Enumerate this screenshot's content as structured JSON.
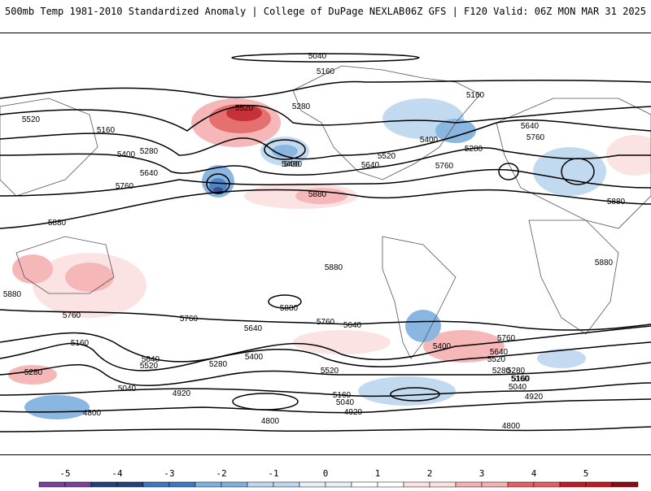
{
  "header": {
    "title_left": "500mb Temp 1981-2010 Standardized Anomaly | College of DuPage NEXLAB",
    "title_right": "06Z GFS | F120 Valid: 06Z MON MAR 31 2025"
  },
  "contours": {
    "labels": [
      "5040",
      "5160",
      "5520",
      "5160",
      "5400",
      "5280",
      "5640",
      "5760",
      "5520",
      "5400",
      "5280",
      "5160",
      "5280",
      "5400",
      "5520",
      "5640",
      "5760",
      "5880",
      "5640",
      "5760",
      "5880",
      "5880",
      "5880",
      "5880",
      "5760",
      "5640",
      "5760",
      "5400",
      "5520",
      "5640",
      "5280",
      "5160",
      "5040",
      "4920",
      "4800",
      "4800",
      "4920",
      "5040",
      "5160",
      "5280",
      "5400",
      "5520",
      "5640",
      "5760",
      "5880",
      "5160",
      "5280",
      "5520",
      "5640",
      "5760",
      "5400",
      "5280",
      "5160",
      "5040",
      "4920",
      "4800",
      "5880"
    ]
  },
  "colorbar": {
    "ticks": [
      "-5",
      "-4",
      "-3",
      "-2",
      "-1",
      "0",
      "1",
      "2",
      "3",
      "4",
      "5"
    ],
    "colors": [
      "#7a3e9d",
      "#243f7a",
      "#3d78c2",
      "#7eb0df",
      "#bcd6ef",
      "#e6eef8",
      "#ffffff",
      "#fbe0e0",
      "#f4b0b0",
      "#e46060",
      "#c01a24",
      "#8b0c14",
      "#f2c200"
    ]
  }
}
